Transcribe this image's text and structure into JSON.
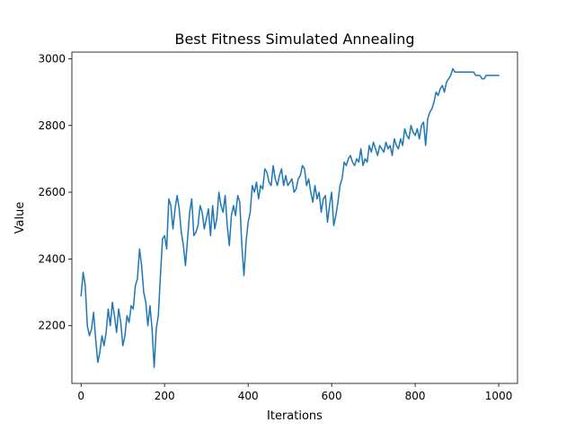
{
  "chart_data": {
    "type": "line",
    "title": "Best Fitness Simulated Annealing",
    "xlabel": "Iterations",
    "ylabel": "Value",
    "xlim": [
      -22,
      1045
    ],
    "ylim": [
      2027,
      3020
    ],
    "xticks": [
      0,
      200,
      400,
      600,
      800,
      1000
    ],
    "yticks": [
      2200,
      2400,
      2600,
      2800,
      3000
    ],
    "grid": false,
    "colors": {
      "line": "#1f77b4"
    },
    "series": [
      {
        "x": [
          0,
          5,
          10,
          15,
          20,
          25,
          30,
          35,
          40,
          45,
          50,
          55,
          60,
          65,
          70,
          75,
          80,
          85,
          90,
          95,
          100,
          105,
          110,
          115,
          120,
          125,
          130,
          135,
          140,
          145,
          150,
          155,
          160,
          165,
          170,
          175,
          180,
          185,
          190,
          195,
          200,
          205,
          210,
          215,
          220,
          225,
          230,
          235,
          240,
          245,
          250,
          255,
          260,
          265,
          270,
          275,
          280,
          285,
          290,
          295,
          300,
          305,
          310,
          315,
          320,
          325,
          330,
          335,
          340,
          345,
          350,
          355,
          360,
          365,
          370,
          375,
          380,
          385,
          390,
          395,
          400,
          405,
          410,
          415,
          420,
          425,
          430,
          435,
          440,
          445,
          450,
          455,
          460,
          465,
          470,
          475,
          480,
          485,
          490,
          495,
          500,
          505,
          510,
          515,
          520,
          525,
          530,
          535,
          540,
          545,
          550,
          555,
          560,
          565,
          570,
          575,
          580,
          585,
          590,
          595,
          600,
          605,
          610,
          615,
          620,
          625,
          630,
          635,
          640,
          645,
          650,
          655,
          660,
          665,
          670,
          675,
          680,
          685,
          690,
          695,
          700,
          705,
          710,
          715,
          720,
          725,
          730,
          735,
          740,
          745,
          750,
          755,
          760,
          765,
          770,
          775,
          780,
          785,
          790,
          795,
          800,
          805,
          810,
          815,
          820,
          825,
          830,
          835,
          840,
          845,
          850,
          855,
          860,
          865,
          870,
          875,
          880,
          885,
          890,
          895,
          900,
          905,
          910,
          915,
          920,
          925,
          930,
          935,
          940,
          945,
          950,
          955,
          960,
          965,
          970,
          975,
          980,
          985,
          990,
          995,
          1000
        ],
        "y": [
          2290,
          2360,
          2320,
          2200,
          2170,
          2190,
          2240,
          2160,
          2090,
          2120,
          2170,
          2140,
          2180,
          2250,
          2200,
          2270,
          2230,
          2180,
          2250,
          2210,
          2140,
          2170,
          2230,
          2210,
          2260,
          2250,
          2320,
          2340,
          2430,
          2380,
          2300,
          2270,
          2200,
          2260,
          2190,
          2075,
          2190,
          2230,
          2350,
          2460,
          2470,
          2430,
          2580,
          2560,
          2490,
          2550,
          2590,
          2550,
          2480,
          2440,
          2380,
          2460,
          2540,
          2580,
          2470,
          2480,
          2500,
          2560,
          2540,
          2490,
          2520,
          2550,
          2470,
          2560,
          2490,
          2520,
          2600,
          2560,
          2540,
          2590,
          2500,
          2440,
          2530,
          2560,
          2530,
          2590,
          2570,
          2440,
          2350,
          2450,
          2510,
          2540,
          2620,
          2600,
          2630,
          2580,
          2620,
          2610,
          2670,
          2660,
          2630,
          2620,
          2680,
          2640,
          2620,
          2650,
          2670,
          2620,
          2650,
          2620,
          2630,
          2640,
          2600,
          2610,
          2640,
          2650,
          2680,
          2670,
          2620,
          2640,
          2600,
          2570,
          2620,
          2580,
          2600,
          2540,
          2580,
          2590,
          2510,
          2560,
          2600,
          2500,
          2530,
          2570,
          2620,
          2640,
          2690,
          2680,
          2700,
          2710,
          2690,
          2680,
          2700,
          2690,
          2730,
          2680,
          2700,
          2690,
          2740,
          2720,
          2750,
          2730,
          2710,
          2740,
          2730,
          2720,
          2750,
          2730,
          2740,
          2710,
          2760,
          2740,
          2730,
          2760,
          2740,
          2790,
          2770,
          2760,
          2800,
          2780,
          2770,
          2790,
          2760,
          2800,
          2810,
          2740,
          2820,
          2840,
          2850,
          2870,
          2900,
          2890,
          2910,
          2920,
          2900,
          2930,
          2940,
          2950,
          2970,
          2960,
          2960,
          2960,
          2960,
          2960,
          2960,
          2960,
          2960,
          2960,
          2960,
          2950,
          2950,
          2950,
          2940,
          2940,
          2950,
          2950,
          2950,
          2950,
          2950,
          2950,
          2950
        ]
      }
    ]
  }
}
